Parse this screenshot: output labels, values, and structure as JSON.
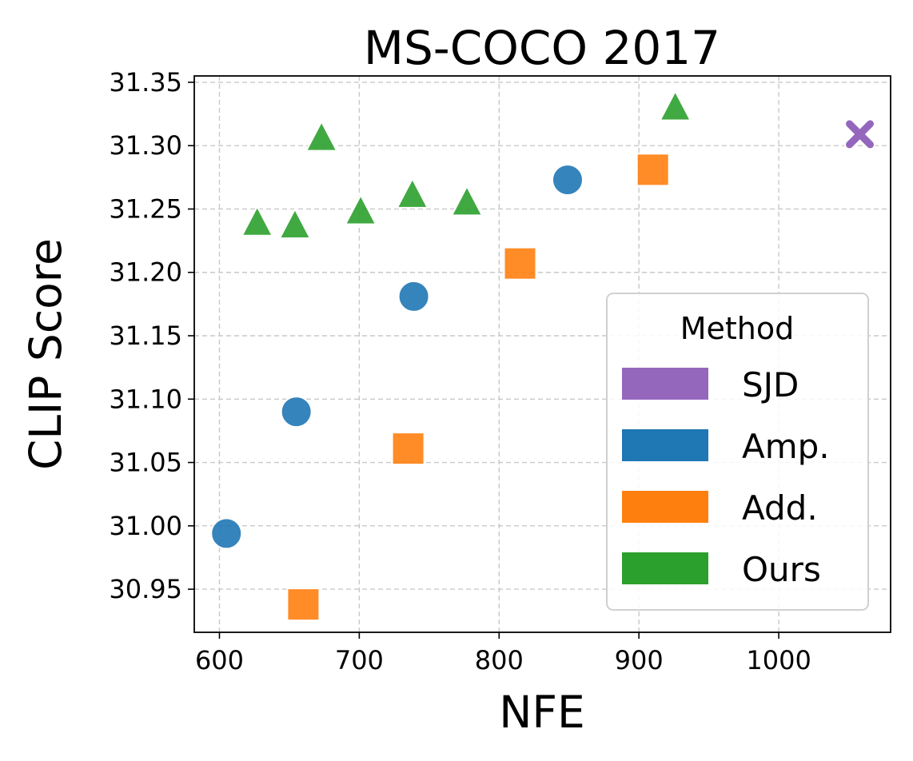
{
  "chart_data": {
    "type": "scatter",
    "title": "MS-COCO 2017",
    "xlabel": "NFE",
    "ylabel": "CLIP Score",
    "xlim": [
      582,
      1080
    ],
    "ylim": [
      30.916,
      31.355
    ],
    "xticks": [
      600,
      700,
      800,
      900,
      1000
    ],
    "xtick_labels": [
      "600",
      "700",
      "800",
      "900",
      "1000"
    ],
    "yticks": [
      30.95,
      31.0,
      31.05,
      31.1,
      31.15,
      31.2,
      31.25,
      31.3,
      31.35
    ],
    "ytick_labels": [
      "30.95",
      "31.00",
      "31.05",
      "31.10",
      "31.15",
      "31.20",
      "31.25",
      "31.30",
      "31.35"
    ],
    "grid": true,
    "legend": {
      "title": "Method",
      "placement": "lower-right",
      "entries": [
        "SJD",
        "Amp.",
        "Add.",
        "Ours"
      ]
    },
    "series": [
      {
        "name": "SJD",
        "color": "#9467bd",
        "marker": "x-icon",
        "points": [
          {
            "x": 1058,
            "y": 31.309
          }
        ]
      },
      {
        "name": "Amp.",
        "color": "#1f77b4",
        "marker": "circle-icon",
        "points": [
          {
            "x": 605,
            "y": 30.994
          },
          {
            "x": 655,
            "y": 31.09
          },
          {
            "x": 739,
            "y": 31.181
          },
          {
            "x": 849,
            "y": 31.273
          }
        ]
      },
      {
        "name": "Add.",
        "color": "#ff7f0e",
        "marker": "square-icon",
        "points": [
          {
            "x": 660,
            "y": 30.938
          },
          {
            "x": 735,
            "y": 31.061
          },
          {
            "x": 815,
            "y": 31.207
          },
          {
            "x": 910,
            "y": 31.281
          }
        ]
      },
      {
        "name": "Ours",
        "color": "#2ca02c",
        "marker": "triangle-icon",
        "points": [
          {
            "x": 627,
            "y": 31.238
          },
          {
            "x": 654,
            "y": 31.236
          },
          {
            "x": 673,
            "y": 31.305
          },
          {
            "x": 701,
            "y": 31.247
          },
          {
            "x": 738,
            "y": 31.26
          },
          {
            "x": 777,
            "y": 31.254
          },
          {
            "x": 926,
            "y": 31.329
          }
        ]
      }
    ]
  }
}
